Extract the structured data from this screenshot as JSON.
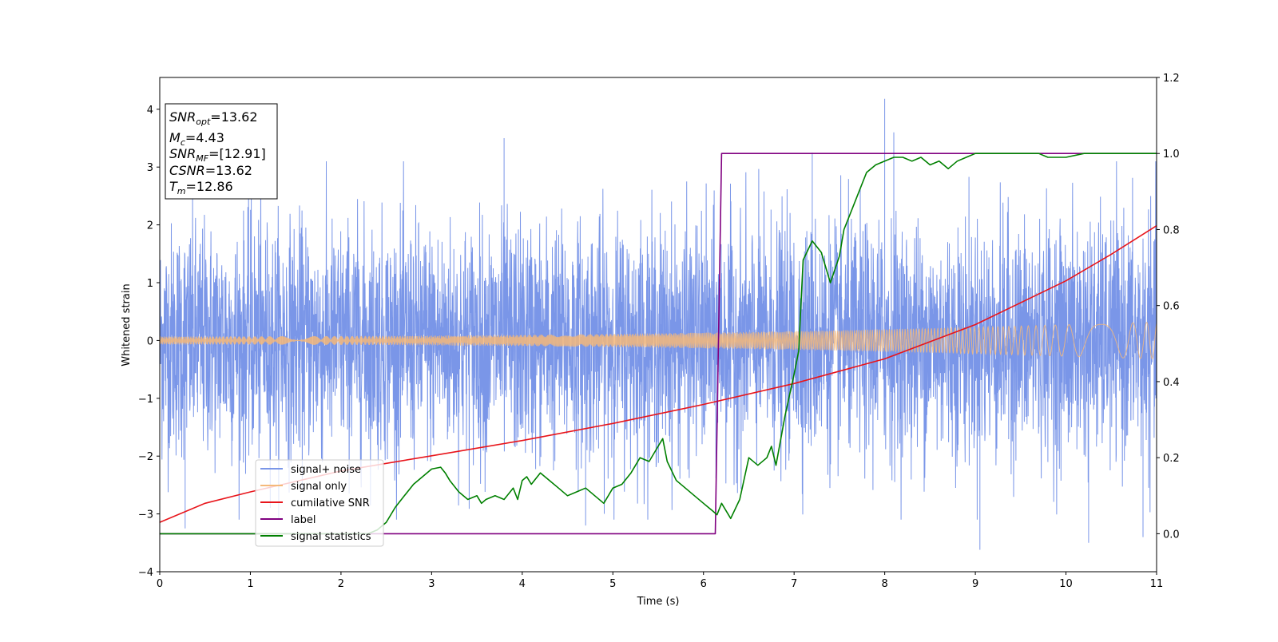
{
  "chart_data": {
    "type": "line",
    "xlabel": "Time (s)",
    "ylabel": "Whitened strain",
    "xlim": [
      0,
      11
    ],
    "ylim_left": [
      -4,
      4.55
    ],
    "ylim_right": [
      -0.1,
      1.2
    ],
    "x_ticks": [
      0,
      1,
      2,
      3,
      4,
      5,
      6,
      7,
      8,
      9,
      10,
      11
    ],
    "x_tick_labels": [
      "0",
      "1",
      "2",
      "3",
      "4",
      "5",
      "6",
      "7",
      "8",
      "9",
      "10",
      "11"
    ],
    "y_left_ticks": [
      -4,
      -3,
      -2,
      -1,
      0,
      1,
      2,
      3,
      4
    ],
    "y_left_tick_labels": [
      "−4",
      "−3",
      "−2",
      "−1",
      "0",
      "1",
      "2",
      "3",
      "4"
    ],
    "y_right_ticks": [
      0.0,
      0.2,
      0.4,
      0.6,
      0.8,
      1.0,
      1.2
    ],
    "y_right_tick_labels": [
      "0.0",
      "0.2",
      "0.4",
      "0.6",
      "0.8",
      "1.0",
      "1.2"
    ],
    "grid": false,
    "legend_position": "lower-left",
    "annotation": {
      "snr_opt": {
        "sym": "SNR",
        "sub": "opt",
        "value": "=13.62"
      },
      "mc": {
        "sym": "M",
        "sub": "c",
        "value": "=4.43"
      },
      "snr_mf": {
        "sym": "SNR",
        "sub": "MF",
        "value": "=[12.91]"
      },
      "csnr": {
        "sym": "CSNR",
        "sub": "",
        "value": "=13.62"
      },
      "tm": {
        "sym": "T",
        "sub": "m",
        "value": "=12.86"
      }
    },
    "series": [
      {
        "name": "signal+ noise",
        "color": "#7a96e8",
        "axis": "left",
        "kind": "noise",
        "sigma": 1.0,
        "peak_spikes": [
          [
            0.28,
            -3.25
          ],
          [
            1.01,
            3.35
          ],
          [
            3.8,
            3.5
          ],
          [
            4.7,
            -3.2
          ],
          [
            8.0,
            4.18
          ],
          [
            8.1,
            3.6
          ],
          [
            9.05,
            -3.62
          ],
          [
            10.25,
            -3.5
          ],
          [
            10.85,
            -3.4
          ],
          [
            7.2,
            3.25
          ]
        ]
      },
      {
        "name": "signal only",
        "color": "#f5b97a",
        "axis": "left",
        "kind": "chirp",
        "amplitude_start": 0.07,
        "amplitude_end": 0.32
      },
      {
        "name": "cumilative SNR",
        "color": "#e8151b",
        "axis": "right",
        "x": [
          0,
          0.5,
          1,
          2,
          3,
          4,
          5,
          6,
          7,
          8,
          9,
          10,
          10.5,
          11
        ],
        "values": [
          0.03,
          0.08,
          0.11,
          0.165,
          0.205,
          0.245,
          0.29,
          0.34,
          0.395,
          0.46,
          0.55,
          0.665,
          0.735,
          0.81
        ]
      },
      {
        "name": "label",
        "color": "#800080",
        "axis": "right",
        "x": [
          0,
          6.13,
          6.2,
          11
        ],
        "values": [
          0,
          0,
          1,
          1
        ]
      },
      {
        "name": "signal statistics",
        "color": "#008000",
        "axis": "right",
        "x": [
          0,
          2.3,
          2.4,
          2.5,
          2.6,
          2.7,
          2.8,
          2.9,
          3.0,
          3.1,
          3.15,
          3.2,
          3.3,
          3.4,
          3.5,
          3.55,
          3.6,
          3.7,
          3.8,
          3.9,
          3.95,
          4.0,
          4.05,
          4.1,
          4.2,
          4.3,
          4.4,
          4.5,
          4.6,
          4.7,
          4.8,
          4.9,
          5.0,
          5.1,
          5.2,
          5.3,
          5.4,
          5.5,
          5.55,
          5.6,
          5.7,
          5.8,
          5.9,
          6.0,
          6.1,
          6.15,
          6.2,
          6.3,
          6.4,
          6.5,
          6.6,
          6.7,
          6.75,
          6.8,
          6.9,
          7.0,
          7.05,
          7.1,
          7.2,
          7.3,
          7.4,
          7.5,
          7.55,
          7.6,
          7.7,
          7.8,
          7.9,
          8.0,
          8.1,
          8.2,
          8.3,
          8.4,
          8.5,
          8.6,
          8.7,
          8.8,
          8.9,
          9.0,
          9.2,
          9.5,
          9.7,
          9.8,
          10.0,
          10.2,
          10.5,
          11.0
        ],
        "values": [
          0.0,
          0.0,
          0.01,
          0.03,
          0.07,
          0.1,
          0.13,
          0.15,
          0.17,
          0.175,
          0.16,
          0.14,
          0.11,
          0.09,
          0.1,
          0.08,
          0.09,
          0.1,
          0.09,
          0.12,
          0.09,
          0.14,
          0.15,
          0.13,
          0.16,
          0.14,
          0.12,
          0.1,
          0.11,
          0.12,
          0.1,
          0.08,
          0.12,
          0.13,
          0.16,
          0.2,
          0.19,
          0.23,
          0.25,
          0.19,
          0.14,
          0.12,
          0.1,
          0.08,
          0.06,
          0.05,
          0.08,
          0.04,
          0.09,
          0.2,
          0.18,
          0.2,
          0.23,
          0.18,
          0.31,
          0.42,
          0.48,
          0.72,
          0.77,
          0.74,
          0.66,
          0.73,
          0.8,
          0.83,
          0.89,
          0.95,
          0.97,
          0.98,
          0.99,
          0.99,
          0.98,
          0.99,
          0.97,
          0.98,
          0.96,
          0.98,
          0.99,
          1.0,
          1.0,
          1.0,
          1.0,
          0.99,
          0.99,
          1.0,
          1.0,
          1.0
        ]
      }
    ]
  }
}
